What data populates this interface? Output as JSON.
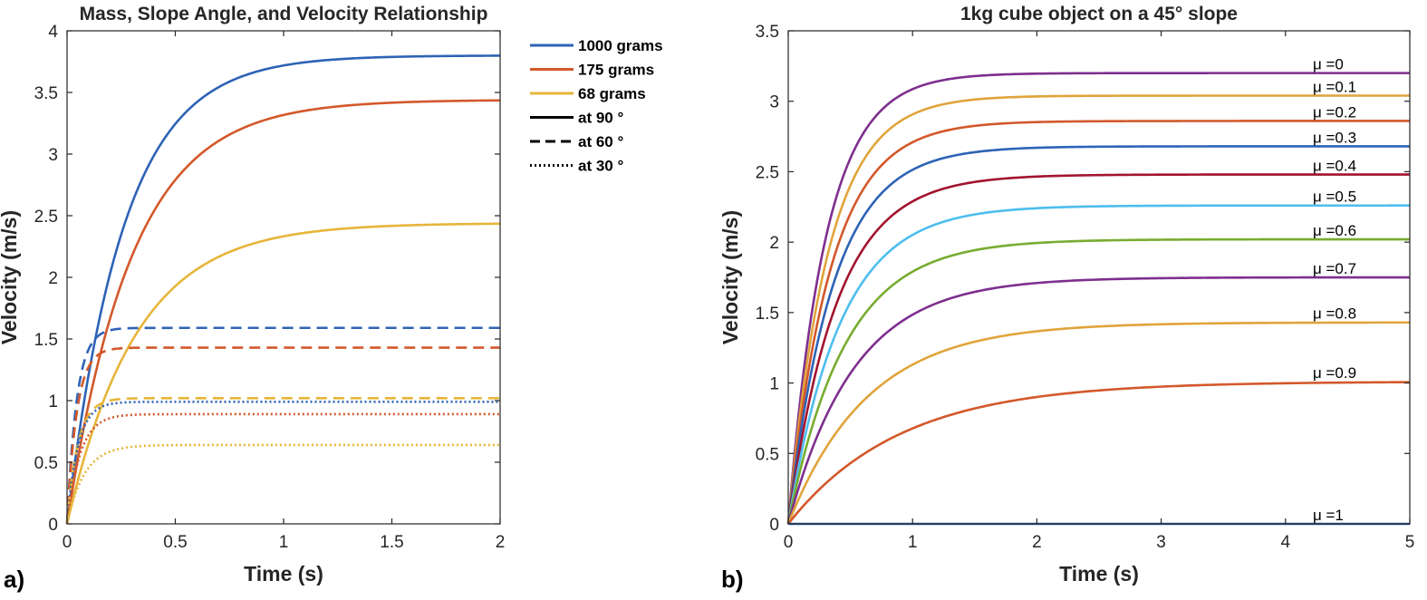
{
  "figure": {
    "panel_a_letter": "a)",
    "panel_b_letter": "b)"
  },
  "chart_data": [
    {
      "type": "line",
      "title": "Mass, Slope Angle, and Velocity Relationship",
      "xlabel": "Time (s)",
      "ylabel": "Velocity (m/s)",
      "xlim": [
        0,
        2
      ],
      "ylim": [
        0,
        4
      ],
      "xticks": [
        0,
        0.5,
        1,
        1.5,
        2
      ],
      "xtick_labels": [
        "0",
        "0.5",
        "1",
        "1.5",
        "2"
      ],
      "yticks": [
        0,
        0.5,
        1,
        1.5,
        2,
        2.5,
        3,
        3.5,
        4
      ],
      "ytick_labels": [
        "0",
        "0.5",
        "1",
        "1.5",
        "2",
        "2.5",
        "3",
        "3.5",
        "4"
      ],
      "legend_position": "outside-top-right",
      "legend": [
        {
          "label": "1000 grams",
          "color": "#2e63b6",
          "style": "solid"
        },
        {
          "label": "175 grams",
          "color": "#d3582b",
          "style": "solid"
        },
        {
          "label": "68 grams",
          "color": "#e6b53a",
          "style": "solid"
        },
        {
          "label": "at 90 °",
          "color": "#000000",
          "style": "solid"
        },
        {
          "label": "at 60 °",
          "color": "#000000",
          "style": "dashed"
        },
        {
          "label": "at 30 °",
          "color": "#000000",
          "style": "dotted"
        }
      ],
      "series": [
        {
          "name": "1000 grams at 90°",
          "color": "#2e63b6",
          "style": "solid",
          "terminal": 3.8,
          "tau": 0.26
        },
        {
          "name": "175 grams at 90°",
          "color": "#d3582b",
          "style": "solid",
          "terminal": 3.44,
          "tau": 0.3
        },
        {
          "name": "68 grams at 90°",
          "color": "#e6b53a",
          "style": "solid",
          "terminal": 2.44,
          "tau": 0.32
        },
        {
          "name": "1000 grams at 60°",
          "color": "#2e63b6",
          "style": "dashed",
          "terminal": 1.59,
          "tau": 0.045
        },
        {
          "name": "175 grams at 60°",
          "color": "#d3582b",
          "style": "dashed",
          "terminal": 1.43,
          "tau": 0.045
        },
        {
          "name": "68 grams at 60°",
          "color": "#e6b53a",
          "style": "dashed",
          "terminal": 1.02,
          "tau": 0.05
        },
        {
          "name": "1000 grams at 30°",
          "color": "#2e63b6",
          "style": "dotted",
          "terminal": 0.99,
          "tau": 0.05
        },
        {
          "name": "175 grams at 30°",
          "color": "#d3582b",
          "style": "dotted",
          "terminal": 0.89,
          "tau": 0.06
        },
        {
          "name": "68 grams at 30°",
          "color": "#e6b53a",
          "style": "dotted",
          "terminal": 0.64,
          "tau": 0.08
        }
      ]
    },
    {
      "type": "line",
      "title": "1kg cube object on a 45° slope",
      "xlabel": "Time (s)",
      "ylabel": "Velocity (m/s)",
      "xlim": [
        0,
        5
      ],
      "ylim": [
        0,
        3.5
      ],
      "xticks": [
        0,
        1,
        2,
        3,
        4,
        5
      ],
      "xtick_labels": [
        "0",
        "1",
        "2",
        "3",
        "4",
        "5"
      ],
      "yticks": [
        0,
        0.5,
        1,
        1.5,
        2,
        2.5,
        3,
        3.5
      ],
      "ytick_labels": [
        "0",
        "0.5",
        "1",
        "1.5",
        "2",
        "2.5",
        "3",
        "3.5"
      ],
      "series": [
        {
          "name": "μ =0",
          "color": "#7e2f8e",
          "terminal": 3.2,
          "tau": 0.3
        },
        {
          "name": "μ =0.1",
          "color": "#e0a43b",
          "terminal": 3.04,
          "tau": 0.32
        },
        {
          "name": "μ =0.2",
          "color": "#d3582b",
          "terminal": 2.86,
          "tau": 0.34
        },
        {
          "name": "μ =0.3",
          "color": "#2e63b6",
          "terminal": 2.68,
          "tau": 0.36
        },
        {
          "name": "μ =0.4",
          "color": "#a2142f",
          "terminal": 2.48,
          "tau": 0.39
        },
        {
          "name": "μ =0.5",
          "color": "#4dbeee",
          "terminal": 2.26,
          "tau": 0.42
        },
        {
          "name": "μ =0.6",
          "color": "#77ac30",
          "terminal": 2.02,
          "tau": 0.46
        },
        {
          "name": "μ =0.7",
          "color": "#7e2f8e",
          "terminal": 1.75,
          "tau": 0.53
        },
        {
          "name": "μ =0.8",
          "color": "#e0a43b",
          "terminal": 1.43,
          "tau": 0.64
        },
        {
          "name": "μ =0.9",
          "color": "#d3582b",
          "terminal": 1.01,
          "tau": 0.9
        },
        {
          "name": "μ =1",
          "color": "#2e63b6",
          "terminal": 0.0,
          "tau": 1.0
        }
      ]
    }
  ]
}
